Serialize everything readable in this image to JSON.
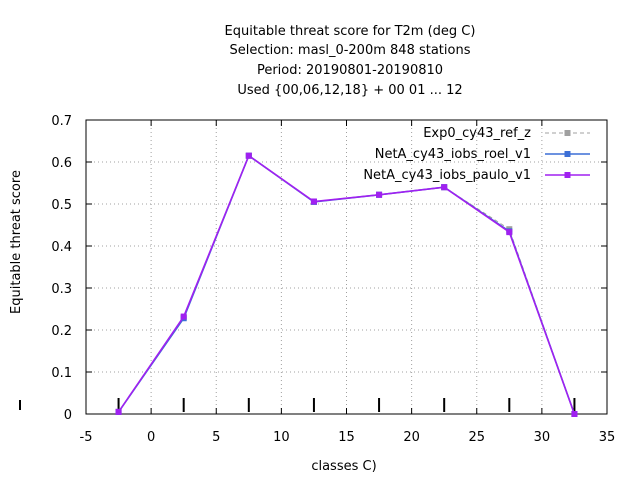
{
  "chart_data": {
    "type": "line",
    "title_lines": [
      "Equitable threat score  for T2m (deg C)",
      "Selection: masl_0-200m    848 stations",
      "Period: 20190801-20190810",
      "Used {00,06,12,18} + 00 01 ... 12"
    ],
    "xlabel": "classes C)",
    "ylabel": "Equitable threat score",
    "xlim": [
      -5,
      35
    ],
    "ylim": [
      0,
      0.7
    ],
    "xticks": [
      -5,
      0,
      5,
      10,
      15,
      20,
      25,
      30,
      35
    ],
    "yticks": [
      0,
      0.1,
      0.2,
      0.3,
      0.4,
      0.5,
      0.6,
      0.7
    ],
    "grid": true,
    "legend_position": "top-right",
    "bottom_marks_x": [
      -2.5,
      2.5,
      7.5,
      12.5,
      17.5,
      22.5,
      27.5,
      32.5
    ],
    "series": [
      {
        "name": "Exp0_cy43_ref_z",
        "color": "#a0a0a0",
        "dashed": true,
        "x": [
          -2.5,
          2.5,
          7.5,
          12.5,
          17.5,
          22.5,
          27.5,
          32.5
        ],
        "y": [
          0.005,
          0.23,
          0.615,
          0.505,
          0.522,
          0.54,
          0.44,
          0.0
        ]
      },
      {
        "name": "NetA_cy43_iobs_roel_v1",
        "color": "#3c6fd6",
        "dashed": false,
        "x": [
          -2.5,
          2.5,
          7.5,
          12.5,
          17.5,
          22.5,
          27.5,
          32.5
        ],
        "y": [
          0.005,
          0.228,
          0.615,
          0.505,
          0.522,
          0.54,
          0.435,
          0.0
        ]
      },
      {
        "name": "NetA_cy43_iobs_paulo_v1",
        "color": "#a020f0",
        "dashed": false,
        "x": [
          -2.5,
          2.5,
          7.5,
          12.5,
          17.5,
          22.5,
          27.5,
          32.5
        ],
        "y": [
          0.005,
          0.232,
          0.615,
          0.506,
          0.522,
          0.54,
          0.433,
          0.0
        ]
      }
    ]
  }
}
